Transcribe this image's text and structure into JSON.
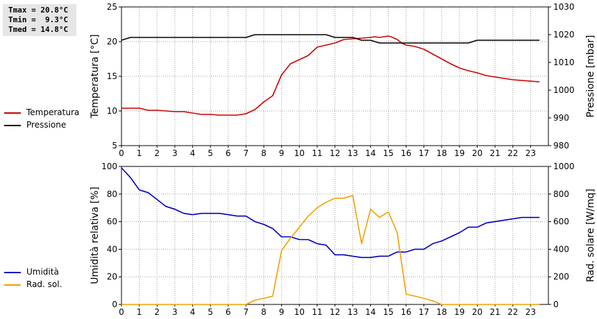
{
  "stats": {
    "tmax": "Tmax = 20.8°C",
    "tmin": "Tmin =  9.3°C",
    "tmed": "Tmed = 14.8°C"
  },
  "legend_top": [
    {
      "label": "Temperatura",
      "color": "#cc0000"
    },
    {
      "label": "Pressione",
      "color": "#000000"
    }
  ],
  "legend_bottom": [
    {
      "label": "Umidità",
      "color": "#0000bb"
    },
    {
      "label": "Rad. sol.",
      "color": "#f0a000"
    }
  ],
  "chart_data": [
    {
      "type": "line",
      "xlabel": "",
      "ylabel": "Temperatura [°C]",
      "y2label": "Pressione [mbar]",
      "xlim": [
        0,
        24
      ],
      "ylim": [
        5,
        25
      ],
      "y2lim": [
        980,
        1030
      ],
      "xticks": [
        "0",
        "1",
        "2",
        "3",
        "4",
        "5",
        "6",
        "7",
        "8",
        "9",
        "10",
        "11",
        "12",
        "13",
        "14",
        "15",
        "16",
        "17",
        "18",
        "19",
        "20",
        "21",
        "22",
        "23"
      ],
      "yticks": [
        "5",
        "10",
        "15",
        "20",
        "25"
      ],
      "y2ticks": [
        "980",
        "990",
        "1000",
        "1010",
        "1020",
        "1030"
      ],
      "grid": true,
      "series": [
        {
          "name": "Temperatura",
          "axis": "left",
          "color": "#cc0000",
          "x": [
            0,
            0.5,
            1,
            1.5,
            2,
            2.5,
            3,
            3.5,
            4,
            4.5,
            5,
            5.5,
            6,
            6.5,
            7,
            7.5,
            8,
            8.5,
            9,
            9.5,
            10,
            10.5,
            11,
            11.5,
            12,
            12.5,
            13,
            13.5,
            14,
            14.25,
            14.5,
            14.75,
            15,
            15.25,
            15.5,
            15.75,
            16,
            16.5,
            17,
            17.5,
            18,
            18.5,
            19,
            19.5,
            20,
            20.5,
            21,
            21.5,
            22,
            22.5,
            23,
            23.5
          ],
          "y": [
            10.4,
            10.4,
            10.4,
            10.1,
            10.1,
            10.0,
            9.9,
            9.9,
            9.7,
            9.5,
            9.5,
            9.4,
            9.4,
            9.4,
            9.6,
            10.2,
            11.3,
            12.2,
            15.2,
            16.8,
            17.4,
            18.0,
            19.2,
            19.5,
            19.8,
            20.3,
            20.4,
            20.5,
            20.6,
            20.7,
            20.6,
            20.7,
            20.8,
            20.6,
            20.3,
            19.8,
            19.5,
            19.3,
            18.9,
            18.2,
            17.5,
            16.8,
            16.2,
            15.8,
            15.5,
            15.1,
            14.9,
            14.7,
            14.5,
            14.4,
            14.3,
            14.2
          ]
        },
        {
          "name": "Pressione",
          "axis": "right",
          "color": "#000000",
          "x": [
            0,
            0.5,
            1,
            2,
            3,
            4,
            5,
            6,
            7,
            7.5,
            8,
            9,
            10,
            11,
            11.5,
            12,
            12.5,
            13,
            13.5,
            14,
            14.5,
            15,
            16,
            17,
            18,
            19,
            19.5,
            20,
            21,
            22,
            23,
            23.5
          ],
          "y": [
            1018,
            1019,
            1019,
            1019,
            1019,
            1019,
            1019,
            1019,
            1019,
            1020,
            1020,
            1020,
            1020,
            1020,
            1020,
            1019,
            1019,
            1019,
            1018,
            1018,
            1017,
            1017,
            1017,
            1017,
            1017,
            1017,
            1017,
            1018,
            1018,
            1018,
            1018,
            1018
          ]
        }
      ]
    },
    {
      "type": "line",
      "xlabel": "",
      "ylabel": "Umidità relativa [%]",
      "y2label": "Rad. solare [W/mq]",
      "xlim": [
        0,
        24
      ],
      "ylim": [
        0,
        100
      ],
      "y2lim": [
        0,
        1000
      ],
      "xticks": [
        "0",
        "1",
        "2",
        "3",
        "4",
        "5",
        "6",
        "7",
        "8",
        "9",
        "10",
        "11",
        "12",
        "13",
        "14",
        "15",
        "16",
        "17",
        "18",
        "19",
        "20",
        "21",
        "22",
        "23"
      ],
      "yticks": [
        "0",
        "20",
        "40",
        "60",
        "80",
        "100"
      ],
      "y2ticks": [
        "0",
        "200",
        "400",
        "600",
        "800",
        "1000"
      ],
      "grid": true,
      "series": [
        {
          "name": "Umidità",
          "axis": "left",
          "color": "#0000bb",
          "x": [
            0,
            0.5,
            1,
            1.5,
            2,
            2.5,
            3,
            3.5,
            4,
            4.5,
            5,
            5.5,
            6,
            6.5,
            7,
            7.5,
            8,
            8.5,
            9,
            9.5,
            10,
            10.5,
            11,
            11.5,
            12,
            12.5,
            13,
            13.5,
            14,
            14.5,
            15,
            15.5,
            16,
            16.5,
            17,
            17.5,
            18,
            18.5,
            19,
            19.5,
            20,
            20.5,
            21,
            21.5,
            22,
            22.5,
            23,
            23.5
          ],
          "y": [
            99,
            92,
            83,
            81,
            76,
            71,
            69,
            66,
            65,
            66,
            66,
            66,
            65,
            64,
            64,
            60,
            58,
            55,
            49,
            49,
            47,
            47,
            44,
            43,
            36,
            36,
            35,
            34,
            34,
            35,
            35,
            38,
            38,
            40,
            40,
            44,
            46,
            49,
            52,
            56,
            56,
            59,
            60,
            61,
            62,
            63,
            63,
            63
          ]
        },
        {
          "name": "Rad. sol.",
          "axis": "right",
          "color": "#f0a000",
          "x": [
            0,
            1,
            2,
            3,
            4,
            5,
            6,
            7,
            7.5,
            8,
            8.5,
            9,
            9.5,
            10,
            10.5,
            11,
            11.5,
            12,
            12.5,
            13,
            13.5,
            14,
            14.5,
            15,
            15.5,
            16,
            16.5,
            17,
            17.5,
            18,
            19,
            20,
            21,
            22,
            23,
            23.5
          ],
          "y": [
            0,
            0,
            0,
            0,
            0,
            0,
            0,
            0,
            30,
            45,
            60,
            390,
            480,
            560,
            640,
            700,
            740,
            770,
            770,
            790,
            440,
            690,
            630,
            670,
            520,
            75,
            60,
            45,
            25,
            0,
            0,
            0,
            0,
            0,
            0,
            0
          ]
        }
      ]
    }
  ]
}
